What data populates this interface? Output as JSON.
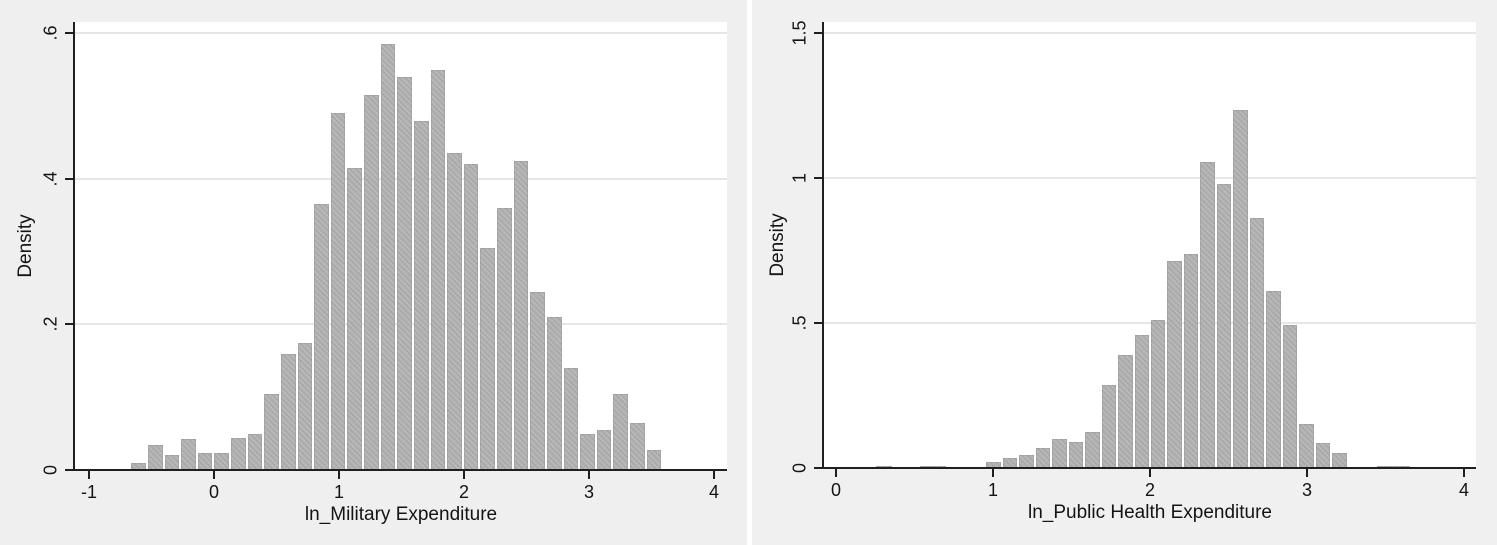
{
  "figure": {
    "type": "two-panel-histogram-figure",
    "background_left": "#efefef",
    "background_right": "#f0f0f0",
    "plot_background": "#ffffff",
    "bar_color": "#b2b2b2",
    "axis_color": "#1f1f1f",
    "gridline_color": "#e6e6e6",
    "text_color": "#141414"
  },
  "chart_data": [
    {
      "type": "bar",
      "subtype": "histogram",
      "title": "",
      "xlabel": "ln_Military Expenditure",
      "ylabel": "Density",
      "xlim": [
        -1,
        4
      ],
      "ylim": [
        0,
        0.6
      ],
      "grid": "horizontal",
      "legend": "none",
      "x_ticks": [
        -1,
        0,
        1,
        2,
        3,
        4
      ],
      "x_tick_labels": [
        "-1",
        "0",
        "1",
        "2",
        "3",
        "4"
      ],
      "y_ticks": [
        0,
        0.2,
        0.4,
        0.6
      ],
      "y_tick_labels": [
        "0",
        ".2",
        ".4",
        ".6"
      ],
      "bin_start": -0.67,
      "bin_width": 0.133,
      "densities": [
        0.01,
        0.035,
        0.02,
        0.043,
        0.024,
        0.024,
        0.044,
        0.05,
        0.105,
        0.16,
        0.175,
        0.365,
        0.49,
        0.415,
        0.515,
        0.585,
        0.54,
        0.48,
        0.55,
        0.435,
        0.42,
        0.305,
        0.36,
        0.425,
        0.245,
        0.21,
        0.14,
        0.05,
        0.055,
        0.105,
        0.065,
        0.028
      ],
      "extra_bins": []
    },
    {
      "type": "bar",
      "subtype": "histogram",
      "title": "",
      "xlabel": "ln_Public Health Expenditure",
      "ylabel": "Density",
      "xlim": [
        0,
        4
      ],
      "ylim": [
        0,
        1.5
      ],
      "grid": "horizontal",
      "legend": "none",
      "x_ticks": [
        0,
        1,
        2,
        3,
        4
      ],
      "x_tick_labels": [
        "0",
        "1",
        "2",
        "3",
        "4"
      ],
      "y_ticks": [
        0,
        0.5,
        1,
        1.5
      ],
      "y_tick_labels": [
        "0",
        ".5",
        "1",
        "1.5"
      ],
      "bin_start": 0.95,
      "bin_width": 0.105,
      "densities": [
        0.019,
        0.035,
        0.046,
        0.069,
        0.1,
        0.088,
        0.123,
        0.287,
        0.39,
        0.459,
        0.511,
        0.715,
        0.738,
        1.055,
        0.981,
        1.235,
        0.861,
        0.611,
        0.492,
        0.15,
        0.085,
        0.05
      ],
      "extra_bins": [
        {
          "x_start": 0.25,
          "x_end": 0.36,
          "density": 0.008
        },
        {
          "x_start": 0.53,
          "x_end": 0.71,
          "density": 0.008
        },
        {
          "x_start": 3.44,
          "x_end": 3.66,
          "density": 0.008
        }
      ]
    }
  ]
}
